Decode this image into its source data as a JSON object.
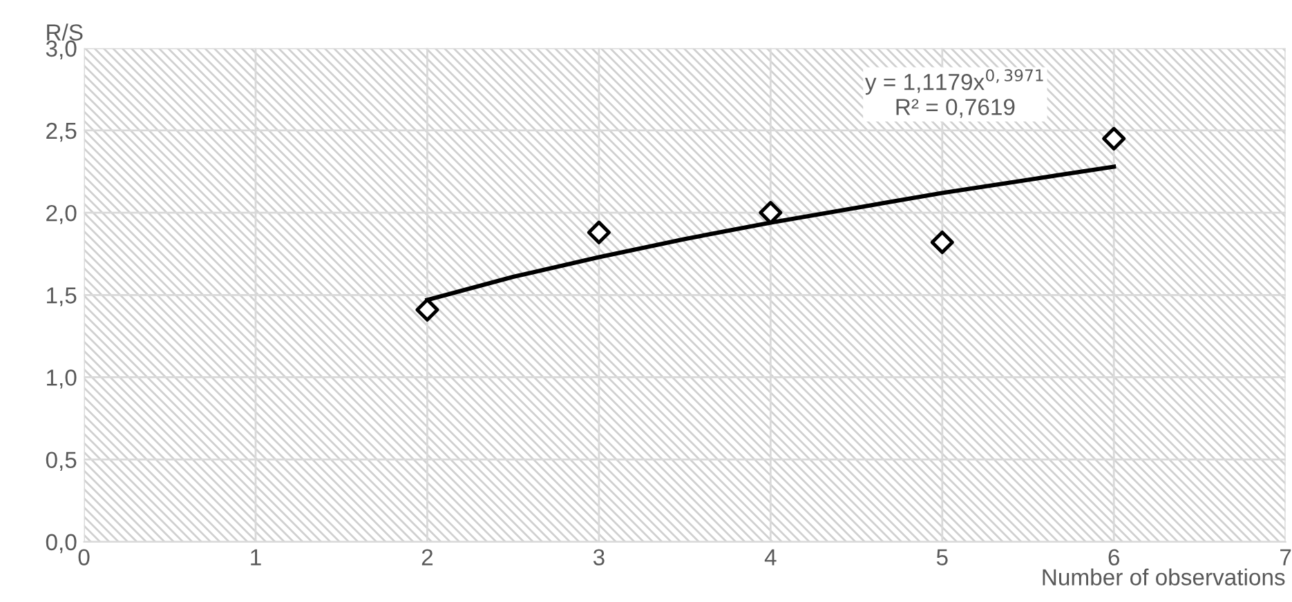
{
  "chart_data": {
    "type": "scatter",
    "xlabel": "Number of observations",
    "ylabel": "R/S",
    "x": [
      2,
      3,
      4,
      5,
      6
    ],
    "series": [
      {
        "color": "#000000",
        "marker": "diamond",
        "values": [
          1.41,
          1.88,
          2.0,
          1.82,
          2.45
        ]
      },
      {
        "type": "line",
        "color": "#000000",
        "marker": "none",
        "line_style": "solid",
        "x": [
          2,
          2.5,
          3,
          3.5,
          4,
          4.5,
          5,
          5.5,
          6
        ],
        "values": [
          1.47,
          1.61,
          1.73,
          1.84,
          1.94,
          2.03,
          2.12,
          2.2,
          2.28
        ]
      }
    ],
    "xlim": [
      0,
      7
    ],
    "xticks": [
      0,
      1,
      2,
      3,
      4,
      5,
      6,
      7
    ],
    "ylim": [
      0,
      3
    ],
    "yticks": [
      {
        "value": 0,
        "label": "0,0"
      },
      {
        "value": 0.5,
        "label": "0,5"
      },
      {
        "value": 1,
        "label": "1,0"
      },
      {
        "value": 1.5,
        "label": "1,5"
      },
      {
        "value": 2,
        "label": "2,0"
      },
      {
        "value": 2.5,
        "label": "2,5"
      },
      {
        "value": 3,
        "label": "3,0"
      }
    ],
    "annotations": [
      "y = 1,1179x$^{0,3971}$\nR² = 0,7619"
    ],
    "grid": true,
    "legend": false
  }
}
